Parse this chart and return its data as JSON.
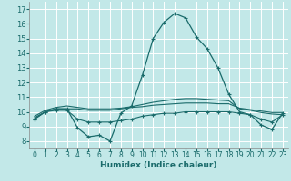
{
  "xlabel": "Humidex (Indice chaleur)",
  "background_color": "#c2e8e8",
  "grid_color": "#ffffff",
  "line_color": "#1a6b6b",
  "x": [
    0,
    1,
    2,
    3,
    4,
    5,
    6,
    7,
    8,
    9,
    10,
    11,
    12,
    13,
    14,
    15,
    16,
    17,
    18,
    19,
    20,
    21,
    22,
    23
  ],
  "series1": [
    9.5,
    10.0,
    10.2,
    10.2,
    8.9,
    8.3,
    8.4,
    8.0,
    9.9,
    10.4,
    12.5,
    15.0,
    16.1,
    16.7,
    16.4,
    15.1,
    14.3,
    13.0,
    11.2,
    10.0,
    9.8,
    9.1,
    8.8,
    9.9
  ],
  "series2": [
    9.7,
    10.1,
    10.3,
    10.4,
    10.3,
    10.2,
    10.2,
    10.2,
    10.25,
    10.35,
    10.5,
    10.65,
    10.75,
    10.85,
    10.9,
    10.9,
    10.85,
    10.8,
    10.75,
    10.2,
    10.1,
    9.95,
    9.85,
    9.8
  ],
  "series3": [
    9.5,
    10.0,
    10.1,
    10.1,
    9.5,
    9.3,
    9.3,
    9.3,
    9.4,
    9.5,
    9.7,
    9.8,
    9.9,
    9.9,
    10.0,
    10.0,
    10.0,
    10.0,
    10.0,
    9.9,
    9.8,
    9.5,
    9.3,
    9.8
  ],
  "series4": [
    9.6,
    10.0,
    10.2,
    10.2,
    10.2,
    10.1,
    10.1,
    10.1,
    10.2,
    10.3,
    10.35,
    10.45,
    10.5,
    10.55,
    10.6,
    10.6,
    10.6,
    10.55,
    10.55,
    10.25,
    10.15,
    10.05,
    9.95,
    9.95
  ],
  "ylim": [
    7.5,
    17.5
  ],
  "yticks": [
    8,
    9,
    10,
    11,
    12,
    13,
    14,
    15,
    16,
    17
  ],
  "xticks": [
    0,
    1,
    2,
    3,
    4,
    5,
    6,
    7,
    8,
    9,
    10,
    11,
    12,
    13,
    14,
    15,
    16,
    17,
    18,
    19,
    20,
    21,
    22,
    23
  ]
}
